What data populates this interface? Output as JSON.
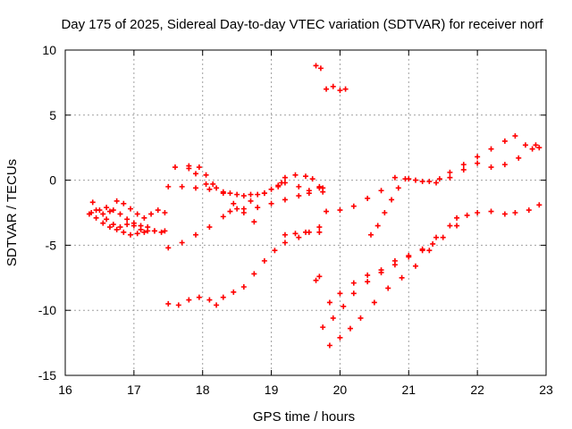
{
  "chart_data": {
    "type": "scatter",
    "title": "Day 175 of 2025, Sidereal Day-to-day VTEC variation (SDTVAR) for receiver norf",
    "xlabel": "GPS time / hours",
    "ylabel": "SDTVAR / TECUs",
    "xlim": [
      16,
      23
    ],
    "ylim": [
      -15,
      10
    ],
    "xticks": [
      "16",
      "17",
      "18",
      "19",
      "20",
      "21",
      "22",
      "23"
    ],
    "yticks": [
      "-15",
      "-10",
      "-5",
      "0",
      "5",
      "10"
    ],
    "grid": true,
    "marker_color": "#ff0000",
    "marker": "plus",
    "series": [
      {
        "points": [
          [
            16.35,
            -2.6
          ],
          [
            16.45,
            -2.9
          ],
          [
            16.55,
            -3.3
          ],
          [
            16.65,
            -3.6
          ],
          [
            16.75,
            -3.8
          ],
          [
            16.85,
            -4.0
          ],
          [
            16.95,
            -4.2
          ],
          [
            17.05,
            -4.1
          ],
          [
            17.15,
            -4.0
          ],
          [
            17.3,
            -3.9
          ],
          [
            17.45,
            -3.9
          ]
        ]
      },
      {
        "points": [
          [
            16.38,
            -2.5
          ],
          [
            16.5,
            -2.3
          ],
          [
            16.6,
            -2.1
          ],
          [
            16.7,
            -2.3
          ],
          [
            16.8,
            -2.6
          ],
          [
            16.9,
            -3.0
          ],
          [
            17.0,
            -3.3
          ],
          [
            17.1,
            -3.5
          ],
          [
            17.2,
            -3.6
          ],
          [
            17.3,
            -3.9
          ],
          [
            17.4,
            -4.0
          ]
        ]
      },
      {
        "points": [
          [
            16.4,
            -1.7
          ],
          [
            16.45,
            -2.3
          ],
          [
            16.55,
            -2.6
          ],
          [
            16.65,
            -2.4
          ],
          [
            16.75,
            -1.6
          ],
          [
            16.85,
            -1.8
          ],
          [
            16.95,
            -2.2
          ],
          [
            17.05,
            -2.6
          ],
          [
            17.15,
            -2.9
          ],
          [
            17.25,
            -2.6
          ],
          [
            17.35,
            -2.3
          ],
          [
            17.45,
            -2.5
          ]
        ]
      },
      {
        "points": [
          [
            16.6,
            -3.0
          ],
          [
            16.7,
            -3.4
          ],
          [
            16.8,
            -3.6
          ],
          [
            16.9,
            -3.4
          ],
          [
            17.0,
            -3.5
          ],
          [
            17.1,
            -3.8
          ],
          [
            17.2,
            -3.9
          ]
        ]
      },
      {
        "points": [
          [
            17.5,
            -0.5
          ],
          [
            17.7,
            -0.5
          ],
          [
            17.9,
            -0.6
          ],
          [
            18.1,
            -0.7
          ],
          [
            18.3,
            -0.9
          ],
          [
            18.5,
            -1.1
          ],
          [
            18.7,
            -1.1
          ],
          [
            18.9,
            -1.0
          ],
          [
            19.1,
            -0.5
          ],
          [
            19.2,
            0.2
          ],
          [
            19.35,
            0.4
          ],
          [
            19.5,
            0.3
          ],
          [
            19.6,
            0.1
          ],
          [
            19.7,
            -0.5
          ],
          [
            19.75,
            -0.9
          ]
        ]
      },
      {
        "points": [
          [
            17.6,
            1.0
          ],
          [
            17.8,
            1.1
          ],
          [
            17.95,
            1.0
          ],
          [
            18.05,
            0.4
          ],
          [
            18.15,
            -0.3
          ],
          [
            18.3,
            -1.0
          ],
          [
            18.45,
            -1.8
          ],
          [
            18.6,
            -2.5
          ],
          [
            18.75,
            -3.2
          ]
        ]
      },
      {
        "points": [
          [
            17.8,
            0.9
          ],
          [
            17.9,
            0.5
          ],
          [
            18.05,
            -0.3
          ],
          [
            18.2,
            -0.6
          ],
          [
            18.4,
            -1.0
          ],
          [
            18.6,
            -1.2
          ],
          [
            18.8,
            -1.1
          ],
          [
            19.0,
            -0.7
          ],
          [
            19.2,
            -0.2
          ],
          [
            19.4,
            -0.5
          ],
          [
            19.55,
            -0.8
          ],
          [
            19.75,
            -0.6
          ]
        ]
      },
      {
        "points": [
          [
            17.5,
            -5.2
          ],
          [
            17.7,
            -4.8
          ],
          [
            17.9,
            -4.2
          ],
          [
            18.1,
            -3.6
          ],
          [
            18.3,
            -2.8
          ],
          [
            18.5,
            -2.2
          ],
          [
            18.7,
            -1.6
          ],
          [
            18.9,
            -1.0
          ],
          [
            19.1,
            -0.4
          ],
          [
            19.15,
            -0.2
          ]
        ]
      },
      {
        "points": [
          [
            18.4,
            -2.4
          ],
          [
            18.6,
            -2.2
          ],
          [
            18.8,
            -2.1
          ],
          [
            19.0,
            -1.8
          ],
          [
            19.2,
            -1.5
          ],
          [
            19.4,
            -1.2
          ],
          [
            19.55,
            -1.0
          ],
          [
            19.7,
            -0.6
          ]
        ]
      },
      {
        "points": [
          [
            17.5,
            -9.5
          ],
          [
            17.65,
            -9.6
          ],
          [
            17.8,
            -9.2
          ],
          [
            17.95,
            -9.0
          ],
          [
            18.1,
            -9.2
          ],
          [
            18.2,
            -9.6
          ],
          [
            18.3,
            -9.0
          ],
          [
            18.45,
            -8.6
          ],
          [
            18.6,
            -8.2
          ],
          [
            18.75,
            -7.2
          ],
          [
            18.9,
            -6.2
          ],
          [
            19.05,
            -5.4
          ],
          [
            19.2,
            -4.8
          ],
          [
            19.4,
            -4.4
          ],
          [
            19.55,
            -4.0
          ],
          [
            19.7,
            -3.6
          ]
        ]
      },
      {
        "points": [
          [
            19.2,
            -4.2
          ],
          [
            19.35,
            -4.1
          ],
          [
            19.5,
            -4.0
          ],
          [
            19.7,
            -4.0
          ]
        ]
      },
      {
        "points": [
          [
            19.65,
            -7.7
          ],
          [
            19.7,
            -7.4
          ]
        ]
      },
      {
        "points": [
          [
            19.65,
            8.8
          ],
          [
            19.72,
            8.6
          ]
        ]
      },
      {
        "points": [
          [
            19.8,
            7.0
          ],
          [
            19.9,
            7.2
          ],
          [
            20.0,
            6.9
          ],
          [
            20.08,
            7.0
          ]
        ]
      },
      {
        "points": [
          [
            19.8,
            -2.4
          ],
          [
            20.0,
            -2.3
          ],
          [
            20.2,
            -2.0
          ],
          [
            20.4,
            -1.4
          ],
          [
            20.6,
            -0.8
          ],
          [
            20.8,
            0.2
          ],
          [
            21.0,
            0.1
          ],
          [
            21.2,
            -0.1
          ],
          [
            21.4,
            -0.2
          ],
          [
            21.6,
            0.2
          ],
          [
            21.8,
            0.8
          ],
          [
            22.0,
            1.3
          ],
          [
            22.2,
            1.0
          ],
          [
            22.4,
            1.2
          ],
          [
            22.6,
            1.7
          ],
          [
            22.8,
            2.4
          ],
          [
            22.9,
            2.5
          ]
        ]
      },
      {
        "points": [
          [
            20.45,
            -4.2
          ],
          [
            20.55,
            -3.5
          ],
          [
            20.65,
            -2.5
          ],
          [
            20.75,
            -1.5
          ],
          [
            20.85,
            -0.6
          ],
          [
            20.95,
            0.1
          ],
          [
            21.1,
            0.0
          ],
          [
            21.3,
            -0.1
          ],
          [
            21.45,
            0.1
          ],
          [
            21.6,
            0.6
          ],
          [
            21.8,
            1.2
          ],
          [
            22.0,
            1.8
          ],
          [
            22.2,
            2.4
          ],
          [
            22.4,
            3.0
          ],
          [
            22.55,
            3.4
          ],
          [
            22.7,
            2.7
          ],
          [
            22.85,
            2.7
          ]
        ]
      },
      {
        "points": [
          [
            19.85,
            -9.4
          ],
          [
            20.0,
            -8.7
          ],
          [
            20.2,
            -7.9
          ],
          [
            20.4,
            -7.3
          ],
          [
            20.6,
            -6.9
          ],
          [
            20.8,
            -6.2
          ],
          [
            21.0,
            -5.8
          ],
          [
            21.2,
            -5.3
          ],
          [
            21.4,
            -4.4
          ],
          [
            21.6,
            -3.5
          ],
          [
            21.7,
            -2.9
          ]
        ]
      },
      {
        "points": [
          [
            19.75,
            -11.3
          ],
          [
            19.9,
            -10.6
          ],
          [
            20.05,
            -9.7
          ],
          [
            20.2,
            -8.7
          ],
          [
            20.4,
            -7.8
          ],
          [
            20.6,
            -7.1
          ],
          [
            20.8,
            -6.5
          ],
          [
            21.0,
            -5.9
          ],
          [
            21.2,
            -5.4
          ],
          [
            21.35,
            -4.9
          ]
        ]
      },
      {
        "points": [
          [
            19.85,
            -12.7
          ],
          [
            20.0,
            -12.1
          ],
          [
            20.15,
            -11.4
          ],
          [
            20.3,
            -10.6
          ],
          [
            20.5,
            -9.4
          ],
          [
            20.7,
            -8.3
          ],
          [
            20.9,
            -7.5
          ],
          [
            21.1,
            -6.6
          ],
          [
            21.3,
            -5.4
          ],
          [
            21.5,
            -4.4
          ],
          [
            21.7,
            -3.5
          ],
          [
            21.85,
            -2.7
          ],
          [
            22.0,
            -2.5
          ],
          [
            22.2,
            -2.4
          ],
          [
            22.4,
            -2.6
          ],
          [
            22.55,
            -2.5
          ],
          [
            22.75,
            -2.3
          ],
          [
            22.9,
            -1.9
          ]
        ]
      }
    ]
  }
}
